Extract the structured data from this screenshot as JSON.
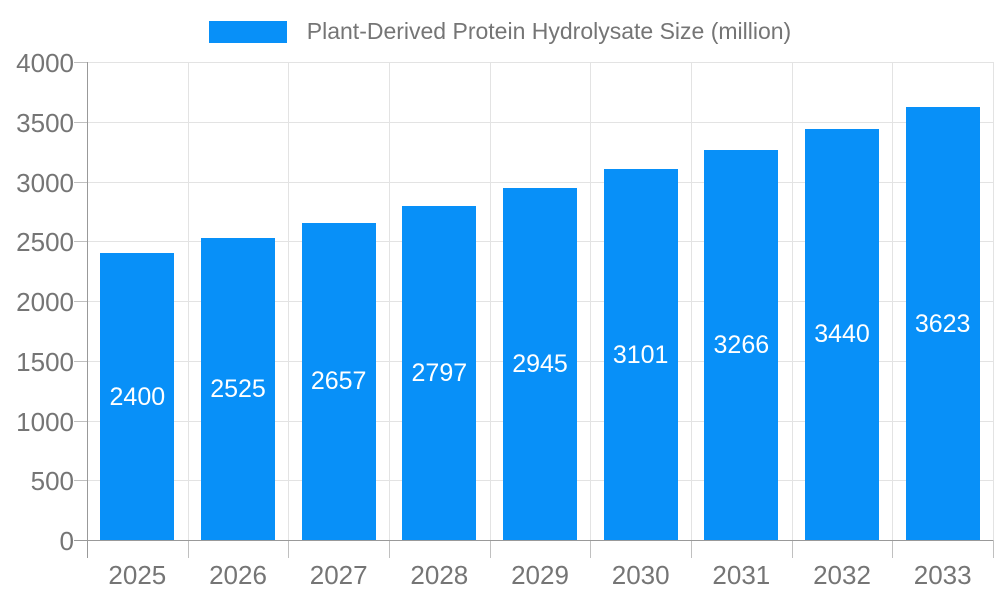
{
  "chart_data": {
    "type": "bar",
    "title": "Plant-Derived Protein Hydrolysate Size (million)",
    "categories": [
      "2025",
      "2026",
      "2027",
      "2028",
      "2029",
      "2030",
      "2031",
      "2032",
      "2033"
    ],
    "values": [
      2400,
      2525,
      2657,
      2797,
      2945,
      3101,
      3266,
      3440,
      3623
    ],
    "series": [
      {
        "name": "Plant-Derived Protein Hydrolysate Size (million)",
        "values": [
          2400,
          2525,
          2657,
          2797,
          2945,
          3101,
          3266,
          3440,
          3623
        ]
      }
    ],
    "xlabel": "",
    "ylabel": "",
    "ylim": [
      0,
      4000
    ],
    "yticks": [
      0,
      500,
      1000,
      1500,
      2000,
      2500,
      3000,
      3500,
      4000
    ],
    "grid": true,
    "legend_position": "top",
    "value_labels": "inside-center",
    "colors": {
      "bar": "#0890F8",
      "bar_value_label": "#ffffff",
      "axis_text": "#757575",
      "axis_line": "#999999",
      "gridline": "#e3e3e3",
      "tick": "#c0c0c0",
      "background": "#ffffff"
    }
  }
}
